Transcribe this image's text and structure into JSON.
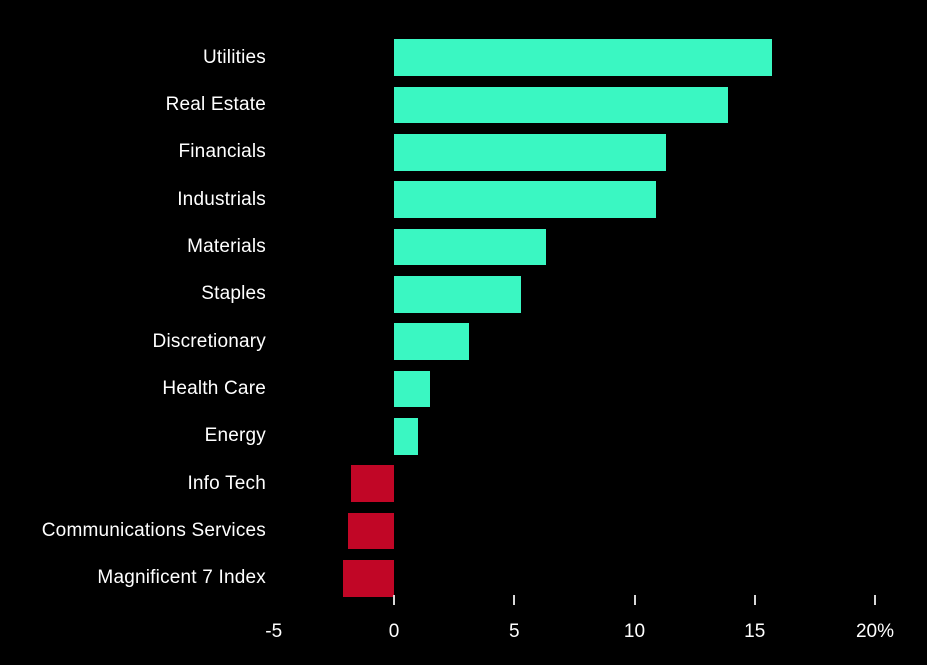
{
  "chart_data": {
    "type": "bar",
    "orientation": "horizontal",
    "title": "",
    "xlabel": "",
    "ylabel": "",
    "grid": false,
    "legend": false,
    "categories": [
      "Utilities",
      "Real Estate",
      "Financials",
      "Industrials",
      "Materials",
      "Staples",
      "Discretionary",
      "Health Care",
      "Energy",
      "Info Tech",
      "Communications Services",
      "Magnificent 7 Index"
    ],
    "values": [
      15.7,
      13.9,
      11.3,
      10.9,
      6.3,
      5.3,
      3.1,
      1.5,
      1.0,
      -1.8,
      -1.9,
      -2.1
    ],
    "unit": "%",
    "xlim": [
      -5.2,
      22.2
    ],
    "x_ticks": [
      {
        "value": -5,
        "label": "-5",
        "show_mark": false
      },
      {
        "value": 0,
        "label": "0",
        "show_mark": true
      },
      {
        "value": 5,
        "label": "5",
        "show_mark": true
      },
      {
        "value": 10,
        "label": "10",
        "show_mark": true
      },
      {
        "value": 15,
        "label": "15",
        "show_mark": true
      },
      {
        "value": 20,
        "label": "20%",
        "show_mark": true
      }
    ],
    "colors": {
      "positive": "#3AF7C2",
      "negative": "#C10626",
      "background": "#000000",
      "text": "#FFFFFF",
      "tick_mark": "#D8D8D8"
    }
  }
}
